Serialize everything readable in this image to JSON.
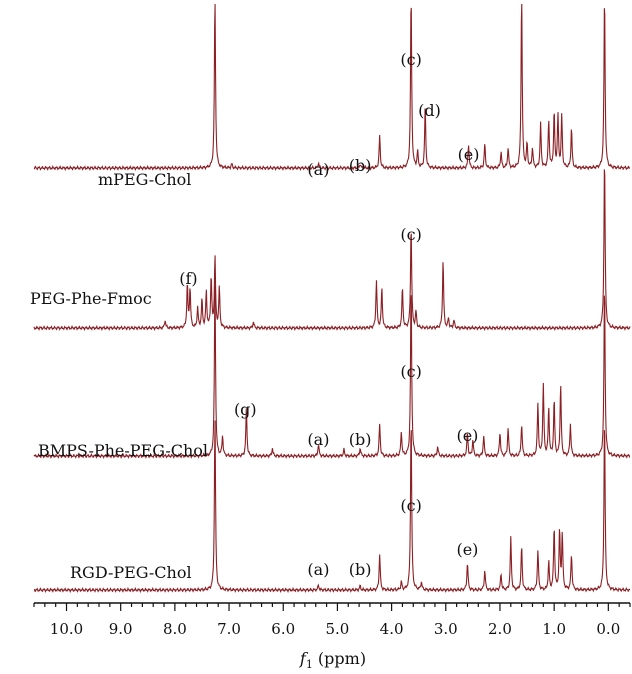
{
  "chart_data": {
    "type": "line",
    "title": "",
    "xlabel_var": "f",
    "xlabel_sub": "1",
    "xlabel_unit": " (ppm)",
    "x_reversed": true,
    "xlim": [
      10.6,
      -0.4
    ],
    "xticks": [
      {
        "value": 10.0,
        "label": "10.0"
      },
      {
        "value": 9.0,
        "label": "9.0"
      },
      {
        "value": 8.0,
        "label": "8.0"
      },
      {
        "value": 7.0,
        "label": "7.0"
      },
      {
        "value": 6.0,
        "label": "6.0"
      },
      {
        "value": 5.0,
        "label": "5.0"
      },
      {
        "value": 4.0,
        "label": "4.0"
      },
      {
        "value": 3.0,
        "label": "3.0"
      },
      {
        "value": 2.0,
        "label": "2.0"
      },
      {
        "value": 1.0,
        "label": "1.0"
      },
      {
        "value": 0.0,
        "label": "0.0"
      }
    ],
    "minor_tick_step": 0.2,
    "line_color": "#8b1f24",
    "series": [
      {
        "name": "mPEG-Chol",
        "peaks": [
          [
            7.26,
            2.2
          ],
          [
            6.95,
            0.05
          ],
          [
            5.35,
            0.06
          ],
          [
            4.58,
            0.05
          ],
          [
            4.22,
            0.4
          ],
          [
            3.64,
            2.2
          ],
          [
            3.52,
            0.2
          ],
          [
            3.38,
            0.75
          ],
          [
            2.58,
            0.3
          ],
          [
            2.28,
            0.3
          ],
          [
            1.98,
            0.2
          ],
          [
            1.85,
            0.25
          ],
          [
            1.6,
            2.2
          ],
          [
            1.5,
            0.3
          ],
          [
            1.4,
            0.25
          ],
          [
            1.25,
            0.55
          ],
          [
            1.1,
            0.6
          ],
          [
            1.0,
            0.7
          ],
          [
            0.93,
            0.65
          ],
          [
            0.86,
            0.65
          ],
          [
            0.68,
            0.5
          ],
          [
            0.07,
            2.2
          ]
        ],
        "annotations": [
          {
            "label": "(a)",
            "x": 5.35
          },
          {
            "label": "(b)",
            "x": 4.58
          },
          {
            "label": "(c)",
            "x": 3.64
          },
          {
            "label": "(d)",
            "x": 3.3
          },
          {
            "label": "(e)",
            "x": 2.58
          }
        ]
      },
      {
        "name": "PEG-Phe-Fmoc",
        "peaks": [
          [
            8.18,
            0.1
          ],
          [
            7.77,
            0.55
          ],
          [
            7.72,
            0.5
          ],
          [
            7.58,
            0.25
          ],
          [
            7.5,
            0.35
          ],
          [
            7.42,
            0.45
          ],
          [
            7.33,
            0.65
          ],
          [
            7.26,
            0.9
          ],
          [
            7.18,
            0.5
          ],
          [
            6.55,
            0.08
          ],
          [
            4.28,
            0.6
          ],
          [
            4.18,
            0.5
          ],
          [
            3.8,
            0.5
          ],
          [
            3.64,
            1.3
          ],
          [
            3.55,
            0.2
          ],
          [
            3.05,
            0.85
          ],
          [
            2.95,
            0.12
          ],
          [
            2.85,
            0.1
          ],
          [
            0.07,
            2.2
          ]
        ],
        "annotations": [
          {
            "label": "(f)",
            "x": 7.75
          },
          {
            "label": "(c)",
            "x": 3.64
          }
        ]
      },
      {
        "name": "BMPS-Phe-PEG-Chol",
        "peaks": [
          [
            7.26,
            2.2
          ],
          [
            7.12,
            0.25
          ],
          [
            6.68,
            0.6
          ],
          [
            6.2,
            0.1
          ],
          [
            5.35,
            0.15
          ],
          [
            4.88,
            0.08
          ],
          [
            4.58,
            0.1
          ],
          [
            4.22,
            0.4
          ],
          [
            3.82,
            0.3
          ],
          [
            3.64,
            2.2
          ],
          [
            3.15,
            0.12
          ],
          [
            2.6,
            0.3
          ],
          [
            2.5,
            0.2
          ],
          [
            2.3,
            0.25
          ],
          [
            2.0,
            0.3
          ],
          [
            1.85,
            0.35
          ],
          [
            1.6,
            0.4
          ],
          [
            1.3,
            0.65
          ],
          [
            1.2,
            0.9
          ],
          [
            1.1,
            0.6
          ],
          [
            1.0,
            0.7
          ],
          [
            0.88,
            0.9
          ],
          [
            0.7,
            0.4
          ],
          [
            0.07,
            2.2
          ]
        ],
        "annotations": [
          {
            "label": "(g)",
            "x": 6.7
          },
          {
            "label": "(a)",
            "x": 5.35
          },
          {
            "label": "(b)",
            "x": 4.58
          },
          {
            "label": "(c)",
            "x": 3.64
          },
          {
            "label": "(e)",
            "x": 2.6
          }
        ]
      },
      {
        "name": "RGD-PEG-Chol",
        "peaks": [
          [
            7.26,
            2.2
          ],
          [
            5.35,
            0.06
          ],
          [
            4.58,
            0.05
          ],
          [
            4.22,
            0.45
          ],
          [
            3.82,
            0.1
          ],
          [
            3.64,
            2.2
          ],
          [
            3.45,
            0.1
          ],
          [
            2.6,
            0.35
          ],
          [
            2.28,
            0.25
          ],
          [
            1.98,
            0.2
          ],
          [
            1.8,
            0.65
          ],
          [
            1.6,
            0.55
          ],
          [
            1.3,
            0.5
          ],
          [
            1.1,
            0.35
          ],
          [
            1.0,
            0.8
          ],
          [
            0.9,
            0.75
          ],
          [
            0.85,
            0.7
          ],
          [
            0.68,
            0.45
          ],
          [
            0.07,
            2.2
          ]
        ],
        "annotations": [
          {
            "label": "(a)",
            "x": 5.35
          },
          {
            "label": "(b)",
            "x": 4.58
          },
          {
            "label": "(c)",
            "x": 3.64
          },
          {
            "label": "(e)",
            "x": 2.6
          }
        ]
      }
    ]
  }
}
